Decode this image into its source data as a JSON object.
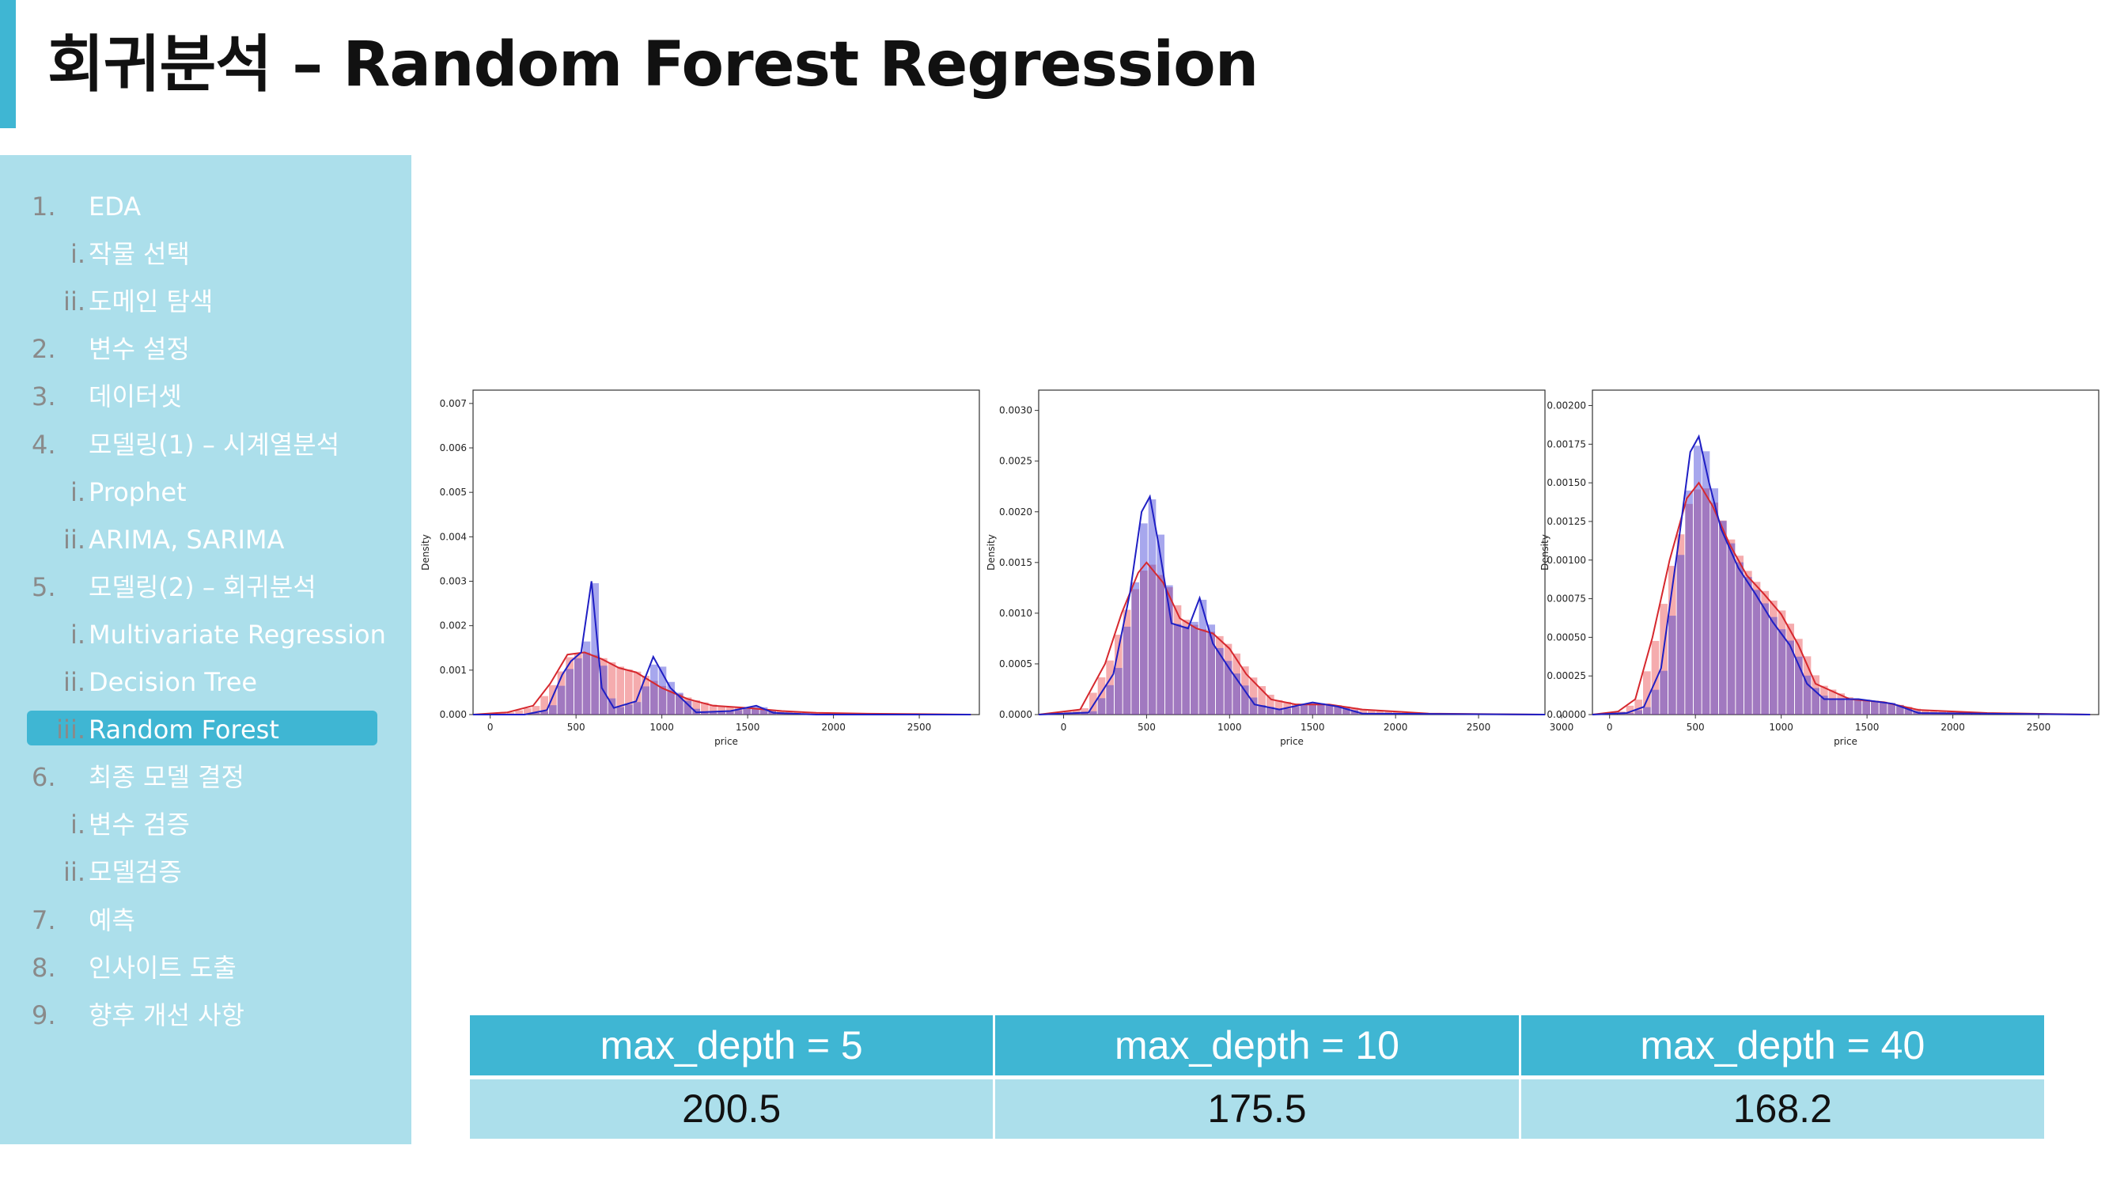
{
  "title": "회귀분석 – Random Forest Regression",
  "sidebar": {
    "items": [
      {
        "num": "1.",
        "label": "EDA",
        "level": "top"
      },
      {
        "num": "i.",
        "label": "작물 선택",
        "level": "sub"
      },
      {
        "num": "ii.",
        "label": "도메인 탐색",
        "level": "sub"
      },
      {
        "num": "2.",
        "label": "변수 설정",
        "level": "top"
      },
      {
        "num": "3.",
        "label": "데이터셋",
        "level": "top"
      },
      {
        "num": "4.",
        "label": "모델링(1) – 시계열분석",
        "level": "top"
      },
      {
        "num": "i.",
        "label": "Prophet",
        "level": "sub"
      },
      {
        "num": "ii.",
        "label": "ARIMA, SARIMA",
        "level": "sub"
      },
      {
        "num": "5.",
        "label": "모델링(2) – 회귀분석",
        "level": "top"
      },
      {
        "num": "i.",
        "label": "Multivariate Regression",
        "level": "sub"
      },
      {
        "num": "ii.",
        "label": "Decision Tree",
        "level": "sub"
      },
      {
        "num": "iii.",
        "label": "Random Forest",
        "level": "sub",
        "active": true
      },
      {
        "num": "6.",
        "label": "최종 모델 결정",
        "level": "top"
      },
      {
        "num": "i.",
        "label": "변수 검증",
        "level": "sub"
      },
      {
        "num": "ii.",
        "label": "모델검증",
        "level": "sub"
      },
      {
        "num": "7.",
        "label": "예측",
        "level": "top"
      },
      {
        "num": "8.",
        "label": "인사이트 도출",
        "level": "top"
      },
      {
        "num": "9.",
        "label": "향후 개선 사항",
        "level": "top"
      }
    ]
  },
  "colors": {
    "accent": "#3fb6d3",
    "sidebar_bg": "#acdfeb",
    "predicted": "#e8474c",
    "actual": "#3b3bd6",
    "overlap": "#8f4fc0"
  },
  "chart_data": [
    {
      "type": "area",
      "xlabel": "price",
      "ylabel": "Density",
      "xlim": [
        -100,
        2850
      ],
      "ylim": [
        0,
        0.0073
      ],
      "xticks": [
        "0",
        "500",
        "1000",
        "1500",
        "2000",
        "2500"
      ],
      "yticks": [
        "0.000",
        "0.001",
        "0.002",
        "0.003",
        "0.004",
        "0.005",
        "0.006",
        "0.007"
      ],
      "series": [
        {
          "color": "red",
          "x": [
            -100,
            100,
            250,
            350,
            450,
            550,
            650,
            750,
            850,
            1000,
            1150,
            1300,
            1500,
            1700,
            1900,
            2200,
            2500,
            2800
          ],
          "values": [
            0,
            5e-05,
            0.0002,
            0.0007,
            0.00135,
            0.0014,
            0.00125,
            0.00105,
            0.00095,
            0.0006,
            0.00035,
            0.0002,
            0.00015,
            8e-05,
            4e-05,
            2e-05,
            1e-05,
            0
          ]
        },
        {
          "color": "blue",
          "x": [
            -100,
            200,
            330,
            420,
            470,
            530,
            590,
            650,
            720,
            850,
            950,
            1050,
            1200,
            1400,
            1550,
            1650,
            1900,
            2800
          ],
          "values": [
            0,
            0,
            0.0001,
            0.0009,
            0.0012,
            0.0014,
            0.003,
            0.0006,
            0.00015,
            0.0003,
            0.0013,
            0.0006,
            5e-05,
            8e-05,
            0.0002,
            4e-05,
            0,
            0
          ]
        }
      ]
    },
    {
      "type": "area",
      "xlabel": "price",
      "ylabel": "Density",
      "xlim": [
        -150,
        2900
      ],
      "ylim": [
        0,
        0.0032
      ],
      "xticks": [
        "0",
        "500",
        "1000",
        "1500",
        "2000",
        "2500",
        "3000"
      ],
      "yticks": [
        "0.0000",
        "0.0005",
        "0.0010",
        "0.0015",
        "0.0020",
        "0.0025",
        "0.0030"
      ],
      "series": [
        {
          "color": "red",
          "x": [
            -150,
            100,
            250,
            350,
            450,
            500,
            600,
            700,
            800,
            900,
            1000,
            1100,
            1250,
            1400,
            1600,
            1800,
            2200,
            2900
          ],
          "values": [
            0,
            5e-05,
            0.0005,
            0.001,
            0.0014,
            0.0015,
            0.0013,
            0.00095,
            0.00085,
            0.0008,
            0.00065,
            0.0004,
            0.00015,
            0.0001,
            0.0001,
            5e-05,
            1e-05,
            0
          ]
        },
        {
          "color": "blue",
          "x": [
            -150,
            150,
            300,
            400,
            470,
            520,
            570,
            650,
            750,
            820,
            900,
            1000,
            1150,
            1300,
            1500,
            1650,
            1800,
            2900
          ],
          "values": [
            0,
            2e-05,
            0.0004,
            0.0012,
            0.002,
            0.00215,
            0.0017,
            0.0009,
            0.00085,
            0.00115,
            0.0007,
            0.00045,
            0.0001,
            5e-05,
            0.00012,
            8e-05,
            1e-05,
            0
          ]
        }
      ]
    },
    {
      "type": "area",
      "xlabel": "price",
      "ylabel": "Density",
      "xlim": [
        -100,
        2850
      ],
      "ylim": [
        0,
        0.0021
      ],
      "xticks": [
        "0",
        "500",
        "1000",
        "1500",
        "2000",
        "2500"
      ],
      "yticks": [
        "0.00000",
        "0.00025",
        "0.00050",
        "0.00075",
        "0.00100",
        "0.00125",
        "0.00150",
        "0.00175",
        "0.00200"
      ],
      "series": [
        {
          "color": "red",
          "x": [
            -100,
            50,
            150,
            250,
            350,
            450,
            520,
            600,
            700,
            800,
            900,
            1000,
            1100,
            1200,
            1400,
            1600,
            1800,
            2200,
            2800
          ],
          "values": [
            0,
            2e-05,
            0.0001,
            0.0005,
            0.001,
            0.0014,
            0.0015,
            0.00135,
            0.0011,
            0.0009,
            0.00078,
            0.00065,
            0.00045,
            0.0002,
            0.0001,
            8e-05,
            3e-05,
            1e-05,
            0
          ]
        },
        {
          "color": "blue",
          "x": [
            -100,
            100,
            200,
            300,
            400,
            470,
            520,
            580,
            650,
            750,
            850,
            950,
            1050,
            1150,
            1250,
            1450,
            1650,
            1800,
            2800
          ],
          "values": [
            0,
            1e-05,
            5e-05,
            0.0003,
            0.0011,
            0.0017,
            0.0018,
            0.0015,
            0.0012,
            0.00095,
            0.00078,
            0.0006,
            0.00045,
            0.0002,
            0.0001,
            0.0001,
            7e-05,
            1e-05,
            0
          ]
        }
      ]
    }
  ],
  "results": {
    "headers": [
      "max_depth = 5",
      "max_depth = 10",
      "max_depth = 40"
    ],
    "values": [
      "200.5",
      "175.5",
      "168.2"
    ]
  }
}
